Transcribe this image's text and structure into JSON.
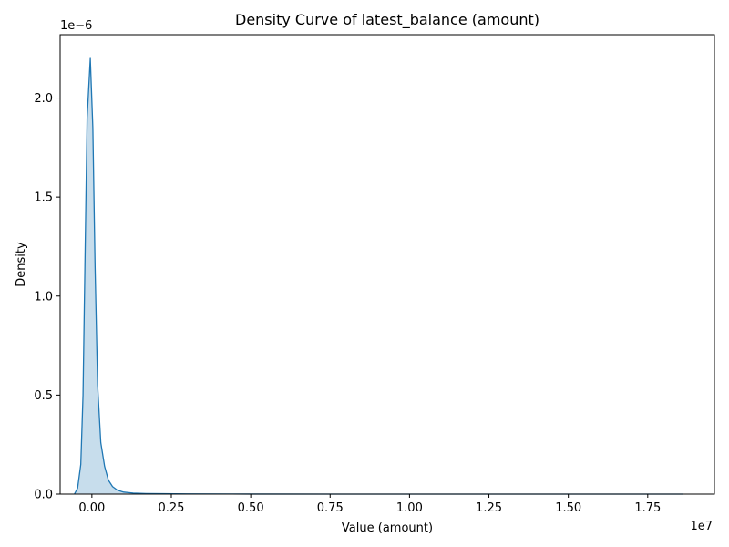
{
  "chart_data": {
    "type": "area",
    "title": "Density Curve of latest_balance (amount)",
    "xlabel": "Value (amount)",
    "ylabel": "Density",
    "x_offset_label": "1e7",
    "y_offset_label": "1e−6",
    "xlim": [
      -1000000,
      19600000
    ],
    "ylim": [
      0,
      2.32
    ],
    "x_ticks": [
      0,
      0.25,
      0.5,
      0.75,
      1.0,
      1.25,
      1.5,
      1.75
    ],
    "x_tick_labels": [
      "0.00",
      "0.25",
      "0.50",
      "0.75",
      "1.00",
      "1.25",
      "1.50",
      "1.75"
    ],
    "y_ticks": [
      0,
      0.5,
      1.0,
      1.5,
      2.0
    ],
    "y_tick_labels": [
      "0.0",
      "0.5",
      "1.0",
      "1.5",
      "2.0"
    ],
    "grid": false,
    "series": [
      {
        "color": "#1f77b4",
        "fill_color": "#1f77b4",
        "fill_opacity": 0.25,
        "points": [
          [
            -550000,
            0.0
          ],
          [
            -450000,
            0.03
          ],
          [
            -350000,
            0.15
          ],
          [
            -280000,
            0.5
          ],
          [
            -220000,
            1.15
          ],
          [
            -150000,
            1.9
          ],
          [
            -50000,
            2.2
          ],
          [
            30000,
            1.85
          ],
          [
            100000,
            1.15
          ],
          [
            180000,
            0.55
          ],
          [
            280000,
            0.26
          ],
          [
            400000,
            0.14
          ],
          [
            520000,
            0.07
          ],
          [
            650000,
            0.038
          ],
          [
            800000,
            0.02
          ],
          [
            1000000,
            0.01
          ],
          [
            1300000,
            0.005
          ],
          [
            1700000,
            0.003
          ],
          [
            2200000,
            0.002
          ],
          [
            3000000,
            0.0008
          ],
          [
            5000000,
            0.0003
          ],
          [
            8000000,
            0.0001
          ],
          [
            12000000,
            5e-05
          ],
          [
            18600000,
            0.0
          ]
        ]
      }
    ]
  }
}
